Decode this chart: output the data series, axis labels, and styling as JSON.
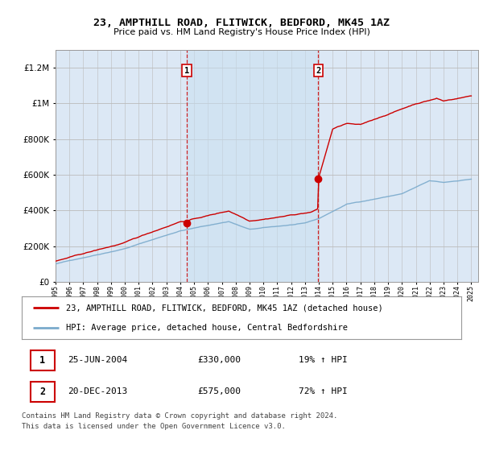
{
  "title": "23, AMPTHILL ROAD, FLITWICK, BEDFORD, MK45 1AZ",
  "subtitle": "Price paid vs. HM Land Registry's House Price Index (HPI)",
  "legend_line1": "23, AMPTHILL ROAD, FLITWICK, BEDFORD, MK45 1AZ (detached house)",
  "legend_line2": "HPI: Average price, detached house, Central Bedfordshire",
  "footnote": "Contains HM Land Registry data © Crown copyright and database right 2024.\nThis data is licensed under the Open Government Licence v3.0.",
  "transaction1_date": "25-JUN-2004",
  "transaction1_price": "£330,000",
  "transaction1_hpi": "19% ↑ HPI",
  "transaction2_date": "20-DEC-2013",
  "transaction2_price": "£575,000",
  "transaction2_hpi": "72% ↑ HPI",
  "sale1_x": 2004.48,
  "sale1_y": 330000,
  "sale2_x": 2013.96,
  "sale2_y": 575000,
  "vline1_x": 2004.48,
  "vline2_x": 2013.96,
  "ylim": [
    0,
    1300000
  ],
  "xlim_start": 1995.0,
  "xlim_end": 2025.5,
  "plot_bg_color": "#dce8f5",
  "red_line_color": "#cc0000",
  "blue_line_color": "#7aaacc",
  "vline_color": "#cc0000",
  "grid_color": "#bbbbbb",
  "sale_dot_color": "#cc0000",
  "span_color": "#dce8f5"
}
